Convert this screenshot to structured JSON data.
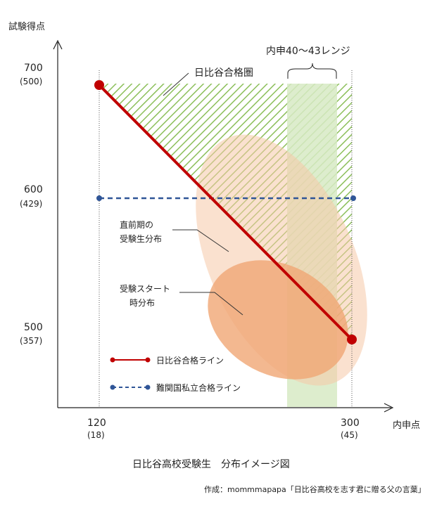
{
  "y_axis_title": "試験得点",
  "x_axis_title": "内申点",
  "y_ticks": [
    {
      "main": "700",
      "sub": "(500)"
    },
    {
      "main": "600",
      "sub": "(429)"
    },
    {
      "main": "500",
      "sub": "(357)"
    }
  ],
  "x_ticks": [
    {
      "main": "120",
      "sub": "(18)"
    },
    {
      "main": "300",
      "sub": "(45)"
    }
  ],
  "range_label": "内申40〜43レンジ",
  "pass_zone_label": "日比谷合格圏",
  "dist_pre_label": [
    "直前期の",
    "受験生分布"
  ],
  "dist_start_label": [
    "受験スタート",
    "時分布"
  ],
  "legend": [
    {
      "label": "日比谷合格ライン",
      "color": "#c00000",
      "style": "solid"
    },
    {
      "label": "難関国私立合格ライン",
      "color": "#2f5597",
      "style": "dashed"
    }
  ],
  "caption": "日比谷高校受験生　分布イメージ図",
  "credit": "作成：mommmapapa「日比谷高校を志す君に贈る父の言葉」",
  "colors": {
    "hibiya_line": "#c00000",
    "private_line": "#2f5597",
    "hatch": "#8cbf5a",
    "range_band": "#d7eac4",
    "ellipse_light": "#f6c9a8",
    "ellipse_dark": "#f0a674"
  }
}
